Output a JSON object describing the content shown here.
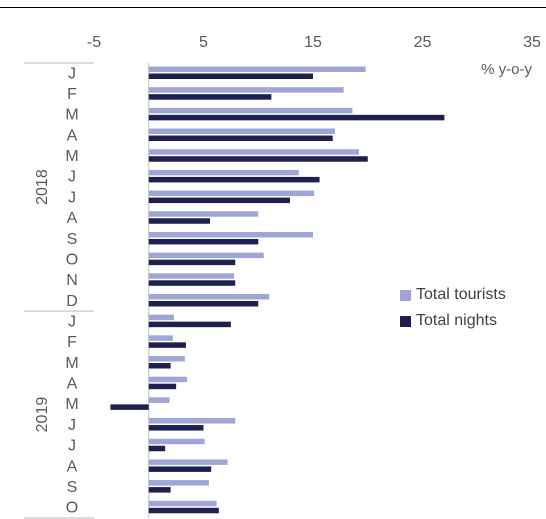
{
  "caption": "",
  "chart_data": {
    "type": "bar",
    "orientation": "horizontal",
    "unit_label": "% y-o-y",
    "xlim": [
      -5,
      35
    ],
    "xticks": [
      -5,
      5,
      15,
      25,
      35
    ],
    "groups": [
      {
        "label": "2018",
        "categories": [
          "J",
          "F",
          "M",
          "A",
          "M",
          "J",
          "J",
          "A",
          "S",
          "O",
          "N",
          "D"
        ]
      },
      {
        "label": "2019",
        "categories": [
          "J",
          "F",
          "M",
          "A",
          "M",
          "J",
          "J",
          "A",
          "S",
          "O"
        ]
      }
    ],
    "series": [
      {
        "name": "Total tourists",
        "color": "#9fa6d6",
        "values": [
          19.8,
          17.8,
          18.6,
          17.0,
          19.2,
          13.7,
          15.1,
          10.0,
          15.0,
          10.5,
          7.8,
          11.0,
          2.3,
          2.2,
          3.3,
          3.5,
          1.9,
          7.9,
          5.1,
          7.2,
          5.5,
          6.2
        ]
      },
      {
        "name": "Total nights",
        "color": "#1f2050",
        "values": [
          15.0,
          11.2,
          27.0,
          16.8,
          20.0,
          15.6,
          12.9,
          5.6,
          10.0,
          7.9,
          7.9,
          10.0,
          7.5,
          3.4,
          2.0,
          2.5,
          -3.5,
          5.0,
          1.5,
          5.7,
          2.0,
          6.4
        ]
      }
    ],
    "legend_position": "right"
  }
}
